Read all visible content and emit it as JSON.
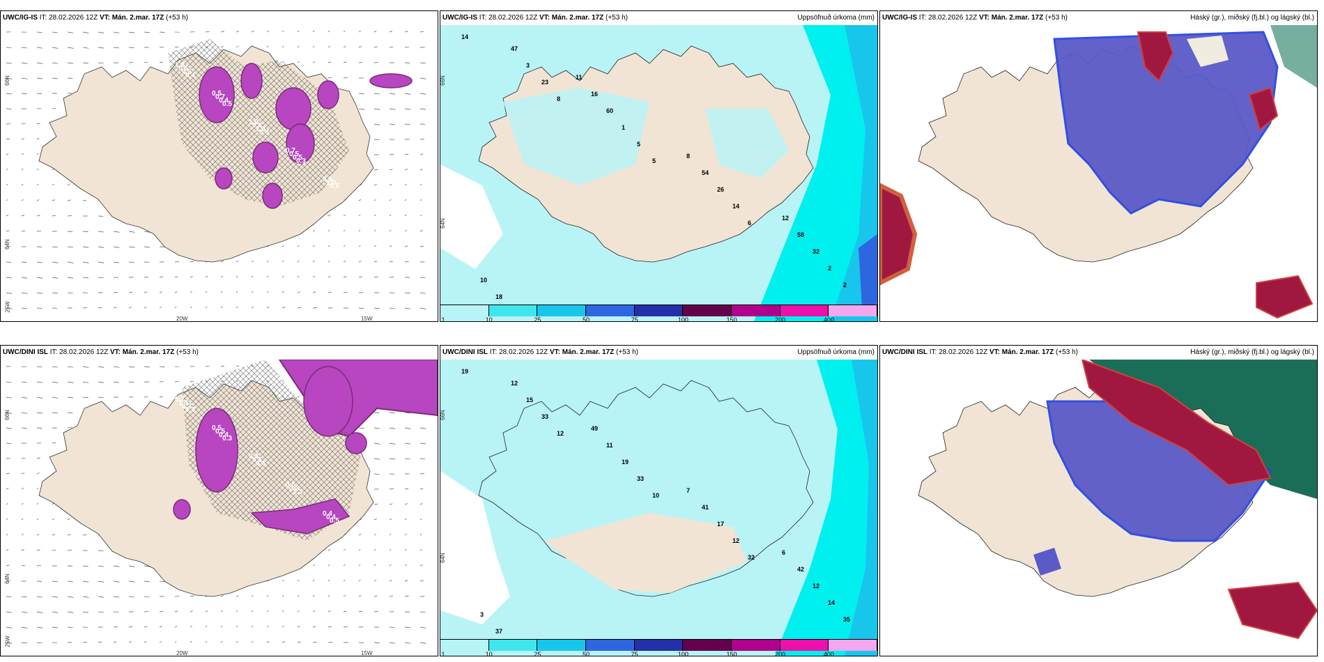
{
  "panels": [
    {
      "header": {
        "model": "UWC/IG-IS",
        "it": "IT: 28.02.2026 12Z",
        "vt": "VT: Mán. 2.mar. 17Z",
        "lead": "(+53 h)",
        "right": ""
      },
      "values": [
        "1.0",
        "0.5",
        "1.0",
        "0.7",
        "0.5",
        "0.6",
        "0.7",
        "0.6",
        "0.5",
        "1.0",
        "0.5",
        "0.4",
        "1.0",
        "0.5",
        "0.5",
        "0.4",
        "0.5",
        "0.4",
        "0.3"
      ],
      "axis": {
        "lat1": "66N",
        "lat2": "64N",
        "lon1": "20W",
        "lon2": "15W",
        "lon3": "25W"
      }
    },
    {
      "header": {
        "model": "UWC/IG-IS",
        "it": "IT: 28.02.2026 12Z",
        "vt": "VT: Mán. 2.mar. 17Z",
        "lead": "(+53 h)",
        "right": "Uppsöfnuð úrkoma (mm)"
      },
      "values": [
        "14",
        "8",
        "5",
        "6",
        "2",
        "23",
        "5",
        "14",
        "2",
        "3",
        "1",
        "26",
        "32",
        "47",
        "60",
        "54",
        "58",
        "18",
        "16",
        "8",
        "12",
        "10",
        "11"
      ],
      "axis": {
        "lat1": "66N",
        "lat2": "64N"
      }
    },
    {
      "header": {
        "model": "UWC/IG-IS",
        "it": "IT: 28.02.2026 12Z",
        "vt": "VT: Mán. 2.mar. 17Z",
        "lead": "(+53 h)",
        "right": "Háský (gr.), miðský (fj.bl.) og lágský (bl.)"
      }
    },
    {
      "header": {
        "model": "UWC/DINI ISL",
        "it": "IT: 28.02.2026 12Z",
        "vt": "VT: Mán. 2.mar. 17Z",
        "lead": "(+53 h)",
        "right": ""
      },
      "values": [
        "0.7",
        "0.5",
        "0.4",
        "0.5",
        "0.4",
        "1.3",
        "0.5",
        "0.5",
        "0.6",
        "0.4",
        "0.7",
        "0.4",
        "0.6",
        "1.3",
        "0.5",
        "0.3",
        "0.3"
      ],
      "axis": {
        "lat1": "66N",
        "lat2": "64N",
        "lon1": "20W",
        "lon2": "15W",
        "lon3": "25W"
      }
    },
    {
      "header": {
        "model": "UWC/DINI ISL",
        "it": "IT: 28.02.2026 12Z",
        "vt": "VT: Mán. 2.mar. 17Z",
        "lead": "(+53 h)",
        "right": "Uppsöfnuð úrkoma (mm)"
      },
      "values": [
        "19",
        "12",
        "10",
        "32",
        "35",
        "33",
        "33",
        "12",
        "14",
        "15",
        "19",
        "17",
        "12",
        "12",
        "11",
        "41",
        "42",
        "37",
        "49",
        "7",
        "6",
        "3"
      ],
      "axis": {
        "lat1": "66N",
        "lat2": "64N"
      }
    },
    {
      "header": {
        "model": "UWC/DINI ISL",
        "it": "IT: 28.02.2026 12Z",
        "vt": "VT: Mán. 2.mar. 17Z",
        "lead": "(+53 h)",
        "right": "Háský (gr.), miðský (fj.bl.) og lágský (bl.)"
      }
    }
  ],
  "legend": {
    "labels": [
      "1",
      "10",
      "25",
      "50",
      "75",
      "100",
      "150",
      "200",
      "400"
    ],
    "colors": [
      "#b8f4f6",
      "#40e6ee",
      "#18c6ec",
      "#2e66e0",
      "#2430a8",
      "#64004c",
      "#b0008c",
      "#ee10aa",
      "#f4a6ee"
    ]
  },
  "colors": {
    "land": "#f1e4d4",
    "precip_light": "#b8f4f6",
    "precip_mid": "#18d6ee",
    "precip_ocean": "#00f0f0",
    "cloud_low": "#5a5ac8",
    "cloud_mid": "#2848e0",
    "cloud_high": "#a01840",
    "cloud_green": "#1a7a60",
    "snow": "#b846c0",
    "snow_dark": "#7a2a7a"
  }
}
